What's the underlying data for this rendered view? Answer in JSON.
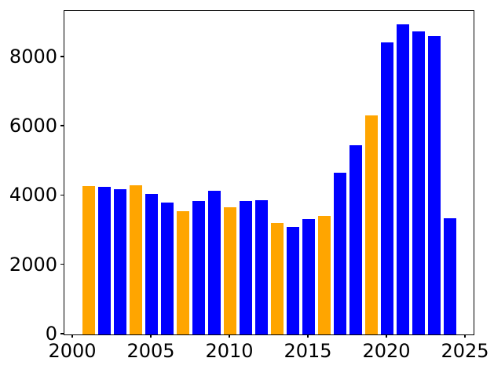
{
  "chart_data": {
    "type": "bar",
    "title": "",
    "xlabel": "",
    "ylabel": "",
    "x": [
      2001,
      2002,
      2003,
      2004,
      2005,
      2006,
      2007,
      2008,
      2009,
      2010,
      2011,
      2012,
      2013,
      2014,
      2015,
      2016,
      2017,
      2018,
      2019,
      2020,
      2021,
      2022,
      2023,
      2024
    ],
    "values": [
      4280,
      4260,
      4190,
      4300,
      4060,
      3800,
      3550,
      3840,
      4140,
      3680,
      3840,
      3880,
      3220,
      3100,
      3340,
      3420,
      4670,
      5460,
      6320,
      8420,
      8950,
      8740,
      8610,
      3350
    ],
    "bar_colors": [
      "#FFA500",
      "#0000FF",
      "#0000FF",
      "#FFA500",
      "#0000FF",
      "#0000FF",
      "#FFA500",
      "#0000FF",
      "#0000FF",
      "#FFA500",
      "#0000FF",
      "#0000FF",
      "#FFA500",
      "#0000FF",
      "#0000FF",
      "#FFA500",
      "#0000FF",
      "#0000FF",
      "#FFA500",
      "#0000FF",
      "#0000FF",
      "#0000FF",
      "#0000FF",
      "#0000FF"
    ],
    "default_color": "#0000FF",
    "highlight_color": "#FFA500",
    "highlight_years": [
      2001,
      2004,
      2007,
      2010,
      2013,
      2016,
      2019
    ],
    "bar_width": 0.8,
    "xlim": [
      1999.45,
      2025.5
    ],
    "ylim": [
      0,
      9330
    ],
    "xticks": [
      2000,
      2005,
      2010,
      2015,
      2020,
      2025
    ],
    "yticks": [
      0,
      2000,
      4000,
      6000,
      8000
    ],
    "grid": false,
    "legend": null,
    "axis_color": "#000000",
    "text_color": "#000000"
  }
}
